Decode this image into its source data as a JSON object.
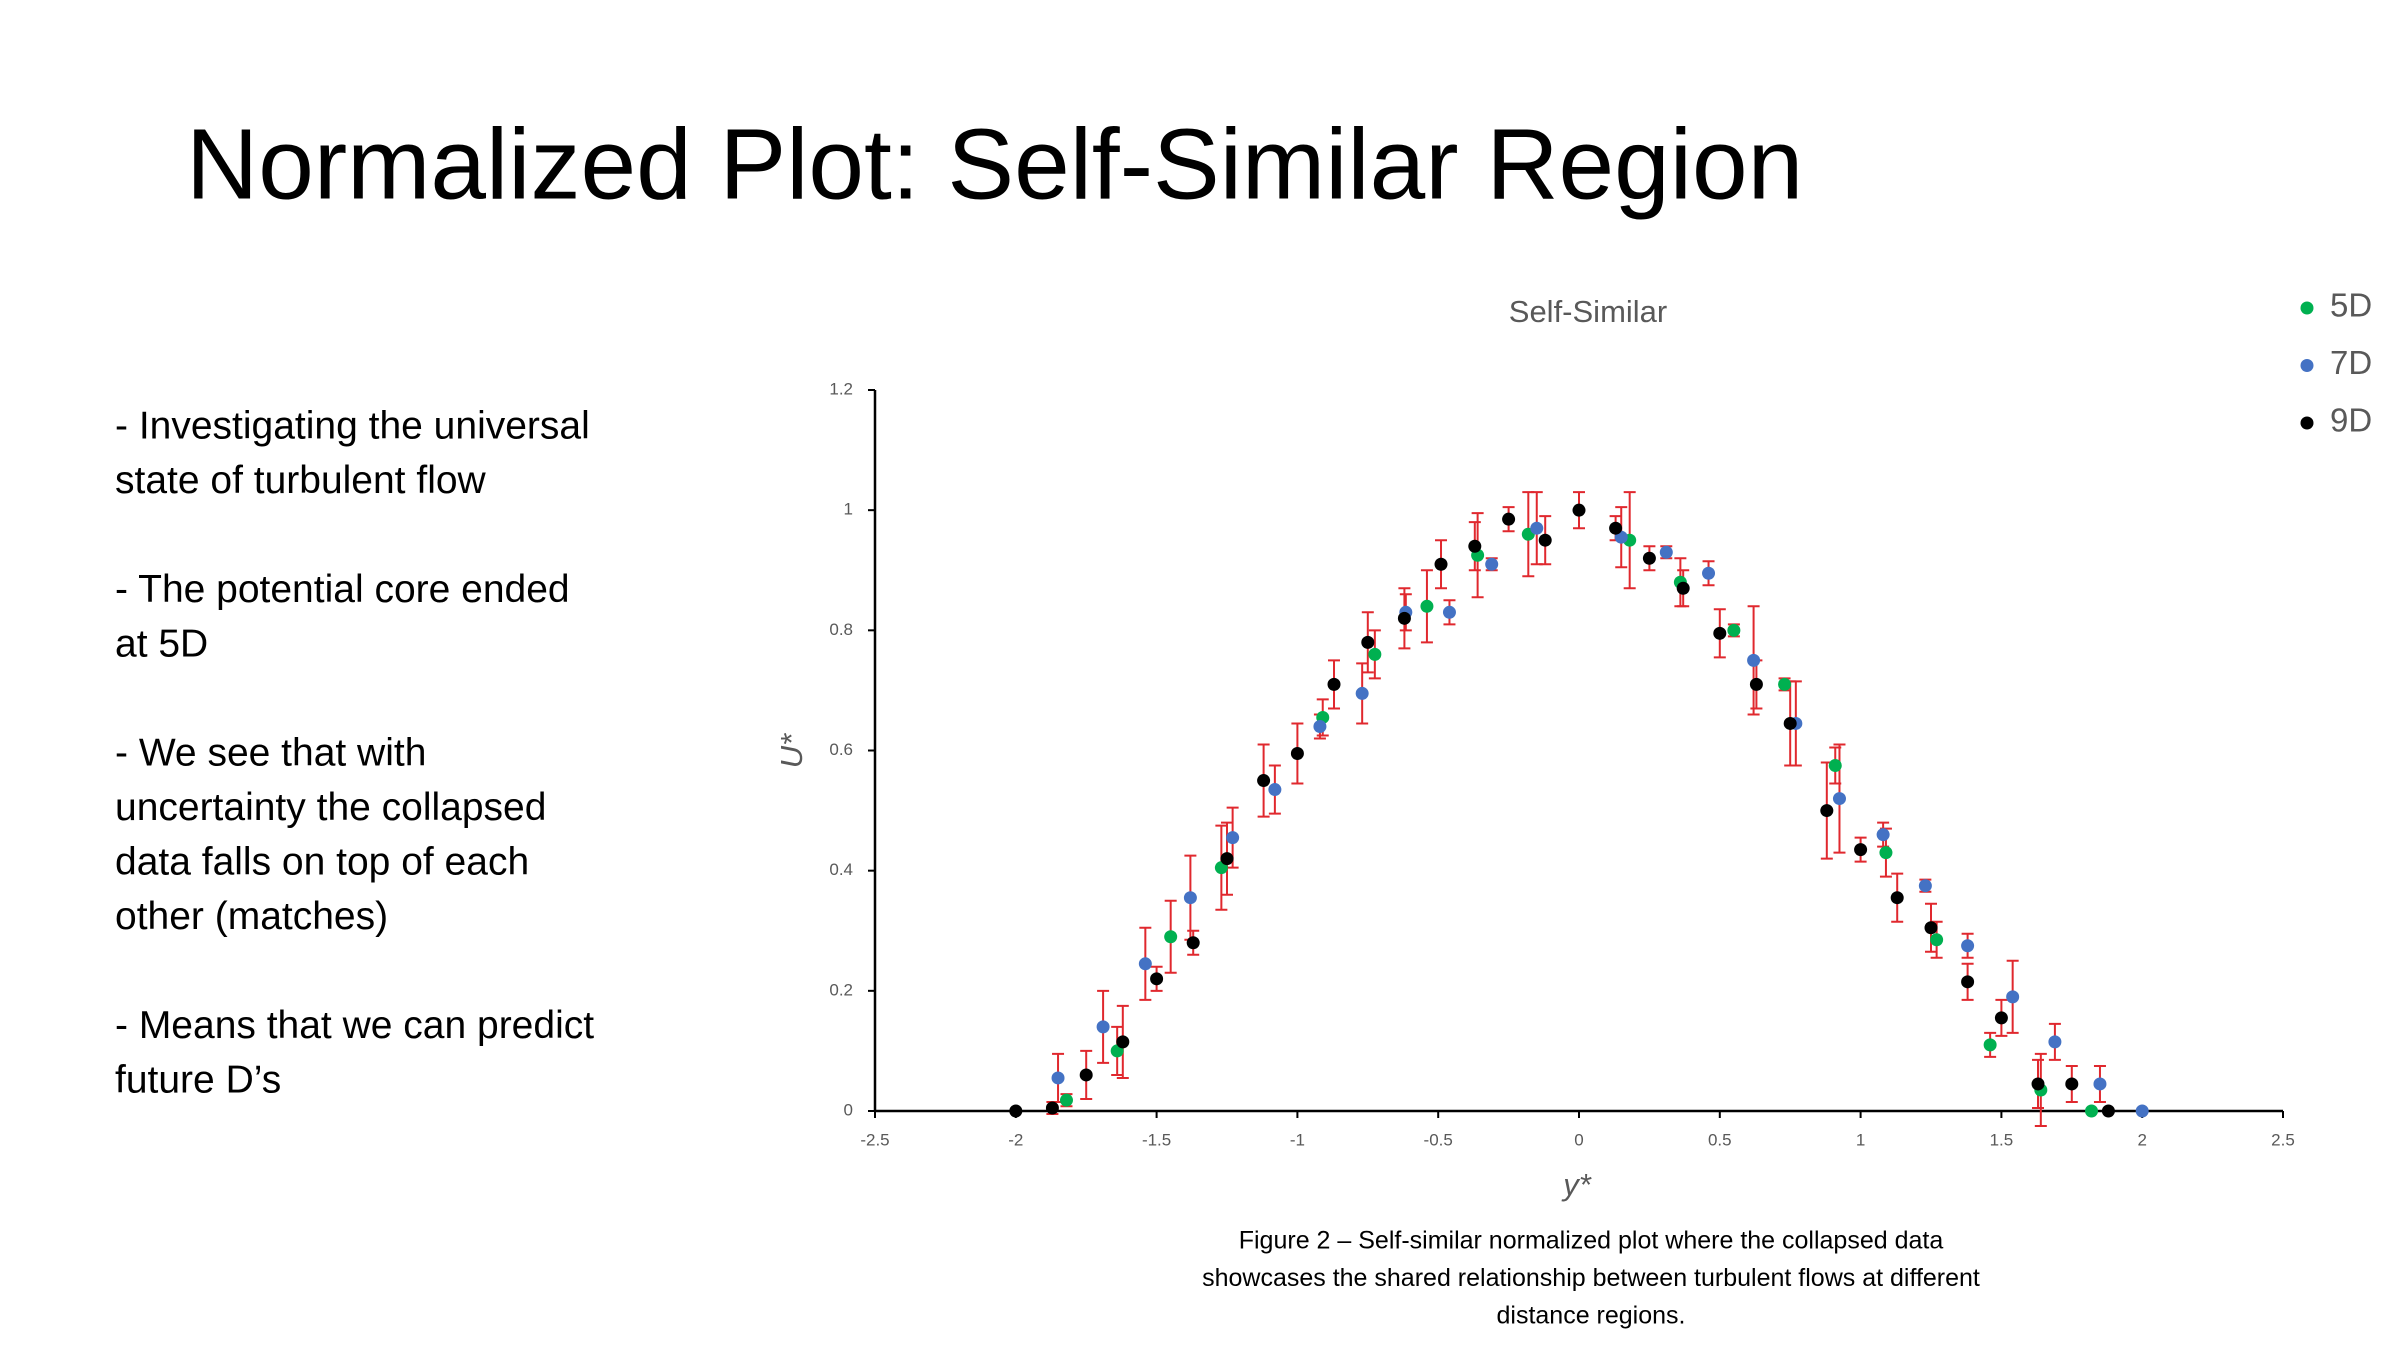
{
  "header": {
    "title": "Normalized Plot: Self-Similar Region"
  },
  "bullets": [
    [
      "- Investigating the universal",
      "state of turbulent flow"
    ],
    [
      "- The potential core ended",
      "at 5D"
    ],
    [
      "- We see that with",
      "uncertainty the collapsed",
      "data falls on top of each",
      "other (matches)"
    ],
    [
      "- Means that we can predict",
      "future D’s"
    ]
  ],
  "chart_data": {
    "type": "scatter",
    "title": "Self-Similar",
    "x_label": "y*",
    "y_label": "U*",
    "xlim": [
      -2.5,
      2.5
    ],
    "ylim": [
      0,
      1.2
    ],
    "xticks": [
      -2.5,
      -2,
      -1.5,
      -1,
      -0.5,
      0,
      0.5,
      1,
      1.5,
      2,
      2.5
    ],
    "yticks": [
      0,
      0.2,
      0.4,
      0.6,
      0.8,
      1,
      1.2
    ],
    "grid": false,
    "legend": "top-right",
    "error_color": "#e0282e",
    "series": [
      {
        "name": "5D",
        "color": "#00b050",
        "x": [
          -1.82,
          -1.64,
          -1.45,
          -1.27,
          -0.91,
          -0.725,
          -0.54,
          -0.36,
          -0.18,
          0.18,
          0.36,
          0.55,
          0.73,
          0.91,
          1.09,
          1.27,
          1.46,
          1.64,
          1.82
        ],
        "values": [
          0.018,
          0.1,
          0.29,
          0.405,
          0.655,
          0.76,
          0.84,
          0.925,
          0.96,
          0.95,
          0.88,
          0.8,
          0.71,
          0.575,
          0.43,
          0.285,
          0.11,
          0.035,
          0
        ],
        "errors": [
          0.01,
          0.04,
          0.06,
          0.07,
          0.03,
          0.04,
          0.06,
          0.07,
          0.07,
          0.08,
          0.04,
          0.01,
          0.01,
          0.03,
          0.04,
          0.03,
          0.02,
          0.06,
          0
        ]
      },
      {
        "name": "7D",
        "color": "#4472c4",
        "x": [
          -1.85,
          -1.69,
          -1.54,
          -1.38,
          -1.23,
          -1.08,
          -0.92,
          -0.77,
          -0.615,
          -0.46,
          -0.31,
          -0.15,
          0.15,
          0.31,
          0.46,
          0.62,
          0.77,
          0.925,
          1.08,
          1.23,
          1.38,
          1.54,
          1.69,
          1.85,
          2.0
        ],
        "values": [
          0.055,
          0.14,
          0.245,
          0.355,
          0.455,
          0.535,
          0.64,
          0.695,
          0.83,
          0.83,
          0.91,
          0.97,
          0.955,
          0.93,
          0.895,
          0.75,
          0.645,
          0.52,
          0.46,
          0.375,
          0.275,
          0.19,
          0.115,
          0.045,
          0
        ],
        "errors": [
          0.04,
          0.06,
          0.06,
          0.07,
          0.05,
          0.04,
          0.02,
          0.05,
          0.03,
          0.02,
          0.01,
          0.06,
          0.05,
          0.01,
          0.02,
          0.09,
          0.07,
          0.09,
          0.02,
          0.01,
          0.02,
          0.06,
          0.03,
          0.03,
          0
        ]
      },
      {
        "name": "9D",
        "color": "#000000",
        "x": [
          -2.0,
          -1.87,
          -1.75,
          -1.62,
          -1.5,
          -1.37,
          -1.25,
          -1.12,
          -1.0,
          -0.87,
          -0.75,
          -0.62,
          -0.49,
          -0.37,
          -0.25,
          -0.12,
          0,
          0.13,
          0.25,
          0.37,
          0.5,
          0.63,
          0.75,
          0.88,
          1.0,
          1.13,
          1.25,
          1.38,
          1.5,
          1.63,
          1.75,
          1.88
        ],
        "values": [
          0,
          0.005,
          0.06,
          0.115,
          0.22,
          0.28,
          0.42,
          0.55,
          0.595,
          0.71,
          0.78,
          0.82,
          0.91,
          0.94,
          0.985,
          0.95,
          1.0,
          0.97,
          0.92,
          0.87,
          0.795,
          0.71,
          0.645,
          0.5,
          0.435,
          0.355,
          0.305,
          0.215,
          0.155,
          0.045,
          0.045,
          0
        ],
        "errors": [
          0,
          0.01,
          0.04,
          0.06,
          0.02,
          0.02,
          0.06,
          0.06,
          0.05,
          0.04,
          0.05,
          0.05,
          0.04,
          0.04,
          0.02,
          0.04,
          0.03,
          0.02,
          0.02,
          0.03,
          0.04,
          0.04,
          0.07,
          0.08,
          0.02,
          0.04,
          0.04,
          0.03,
          0.03,
          0.04,
          0.03,
          0
        ]
      }
    ]
  },
  "caption": [
    "Figure 2 – Self-similar normalized plot where the collapsed data",
    "showcases the shared relationship between turbulent flows at different",
    "distance regions."
  ]
}
